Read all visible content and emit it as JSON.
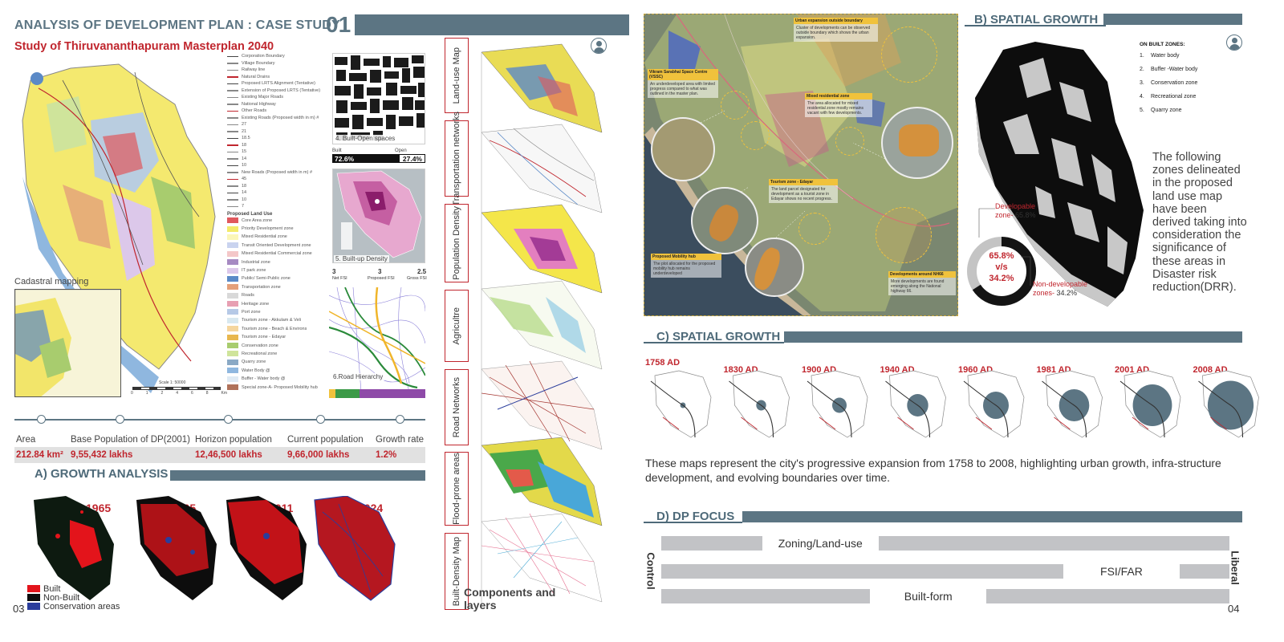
{
  "left": {
    "title": "ANALYSIS OF DEVELOPMENT PLAN  : CASE STUDY",
    "number": "01",
    "subtitle": "Study of Thiruvananthapuram Masterplan 2040",
    "cadastral_label": "Cadastral mapping",
    "scale_label": "Scale 1: 50000",
    "scale_ticks": [
      "0",
      "1",
      "2",
      "4",
      "6",
      "8",
      "Km"
    ],
    "legend_lines": [
      "Corporation Boundary",
      "Village Boundary",
      "Railway line",
      "Natural Drains",
      "Proposed LRTS Alignment (Tentative)",
      "Extension of Proposed LRTS (Tentative)",
      "Existing Major Roads",
      "National Highway",
      "Other Roads",
      "Existing Roads (Proposed width in m) #",
      "27",
      "21",
      "18.5",
      "18",
      "15",
      "14",
      "10",
      "New Roads (Proposed width in m) #",
      "45",
      "18",
      "14",
      "10",
      "7"
    ],
    "land_use_title": "Proposed Land Use",
    "land_use": [
      {
        "label": "Core Area zone",
        "color": "#e0585d"
      },
      {
        "label": "Priority Development zone",
        "color": "#f3ea6a"
      },
      {
        "label": "Mixed Residential zone",
        "color": "#fbf6b8"
      },
      {
        "label": "Transit Oriented Development zone",
        "color": "#c9d3ef"
      },
      {
        "label": "Mixed Residential Commercial zone",
        "color": "#f4c7c8"
      },
      {
        "label": "Industrial zone",
        "color": "#a68ac2"
      },
      {
        "label": "IT park zone",
        "color": "#dcc8ea"
      },
      {
        "label": "Public/ Semi-Public zone",
        "color": "#5b8ac7"
      },
      {
        "label": "Transportation zone",
        "color": "#e4a07a"
      },
      {
        "label": "Roads",
        "color": "#d9d9d9"
      },
      {
        "label": "Heritage zone",
        "color": "#e79fb2"
      },
      {
        "label": "Port zone",
        "color": "#b6c9e6"
      },
      {
        "label": "Tourism zone - Akkulam & Veli",
        "color": "#d8e8f0"
      },
      {
        "label": "Tourism zone - Beach & Environs",
        "color": "#f5d69e"
      },
      {
        "label": "Tourism zone - Edayar",
        "color": "#e8b74e"
      },
      {
        "label": "Conservation zone",
        "color": "#a8cc6e"
      },
      {
        "label": "Recreational zone",
        "color": "#cfe49b"
      },
      {
        "label": "Quarry zone",
        "color": "#8aa9c5"
      },
      {
        "label": "Water Body @",
        "color": "#8fb7df"
      },
      {
        "label": "Buffer - Water body @",
        "color": "#dfeaf4"
      },
      {
        "label": "Special zone-A- Proposed Mobility hub",
        "color": "#b0725a"
      }
    ],
    "mini_maps": {
      "built_open": {
        "label": "4. Built-Open spaces",
        "built_label": "Built",
        "open_label": "Open",
        "built_value": "72.6%",
        "open_value": "27.4%",
        "built_fraction": 0.726
      },
      "density": {
        "label": "5. Built-up Density",
        "fsi": [
          {
            "value": "3",
            "label": "Net FSI"
          },
          {
            "value": "3",
            "label": "Proposed FSI"
          },
          {
            "value": "2.5",
            "label": "Gross FSI"
          }
        ]
      },
      "road": {
        "label": "6.Road Hierarchy"
      }
    },
    "tabs": [
      "Land-use Map",
      "Transportation networks",
      "Population Density",
      "Agricultre",
      "Road Networks",
      "Flood-prone areas",
      "Built-Density Map"
    ],
    "components_label": "Components and layers",
    "stats": [
      {
        "label": "Area",
        "value": "212.84 km²"
      },
      {
        "label": "Base Population of DP(2001)",
        "value": "9,55,432 lakhs"
      },
      {
        "label": "Horizon population",
        "value": "12,46,500 lakhs"
      },
      {
        "label": "Current population",
        "value": "9,66,000 lakhs"
      },
      {
        "label": "Growth rate",
        "value": "1.2%"
      }
    ],
    "growth_title": "A) GROWTH ANALYSIS",
    "growth_years": [
      "1965",
      "2005",
      "2011",
      "2024"
    ],
    "growth_legend": [
      {
        "label": "Built",
        "color": "#e3141b"
      },
      {
        "label": "Non-Built",
        "color": "#0d0d0d"
      },
      {
        "label": "Conservation areas",
        "color": "#2a3d9c"
      }
    ],
    "page_number": "03"
  },
  "right": {
    "b_title": "B) SPATIAL GROWTH",
    "non_built_title": "ON BUILT ZONES:",
    "non_built_zones": [
      "Water body",
      "Buffer -Water body",
      "Conservation zone",
      "Recreational zone",
      "Quarry zone"
    ],
    "zones_text": "The following zones delineated in the proposed land use map have been derived taking into consideration the significance of these areas in Disaster risk reduction(DRR).",
    "donut": {
      "developable_label": "Developable zone-",
      "developable_value": "65.8%",
      "non_developable_label": "Non-developable zones-",
      "non_developable_value": "34.2%",
      "center_top": "65.8%",
      "center_mid": "v/s",
      "center_bottom": "34.2%",
      "developable_fraction": 0.658
    },
    "annotations": [
      {
        "title": "Urban expansion outside boundary",
        "text": "Cluster of developments can be observed outside boundary which shows the urban expansion."
      },
      {
        "title": "Vikram Sarabhai Space Centre (VSSC)",
        "text": "An underdeveloped area with limited progress compared to what was outlined in the master plan."
      },
      {
        "title": "Mixed residential zone",
        "text": "The area allocated for mixed residential zone mostly remains vacant with few developments."
      },
      {
        "title": "Tourism zone - Edayar",
        "text": "The land parcel designated for development as a tourist zone in Edayar shows no recent progress."
      },
      {
        "title": "Proposed Mobility hub",
        "text": "The plot allocated for the proposed mobility hub remains underdeveloped"
      },
      {
        "title": "Developments around NH66",
        "text": "More developments are found emerging along the National highway 66."
      }
    ],
    "c_title": "C) SPATIAL GROWTH",
    "timeline": [
      {
        "year": "1758 AD",
        "growth": 0.05
      },
      {
        "year": "1830 AD",
        "growth": 0.15
      },
      {
        "year": "1900 AD",
        "growth": 0.25
      },
      {
        "year": "1940 AD",
        "growth": 0.4
      },
      {
        "year": "1960 AD",
        "growth": 0.5
      },
      {
        "year": "1981 AD",
        "growth": 0.6
      },
      {
        "year": "2001 AD",
        "growth": 0.8
      },
      {
        "year": "2008 AD",
        "growth": 0.95
      }
    ],
    "timeline_text": "These maps represent the city's progressive expansion from 1758 to 2008, highlighting urban growth, infra-structure development, and evolving boundaries over time.",
    "d_title": "D) DP FOCUS",
    "dp_rows": [
      {
        "label": "Zoning/Land-use",
        "position": 0.28
      },
      {
        "label": "FSI/FAR",
        "position": 0.81
      },
      {
        "label": "Built-form",
        "position": 0.47
      }
    ],
    "control_label": "Control",
    "liberal_label": "Liberal",
    "page_number": "04"
  }
}
